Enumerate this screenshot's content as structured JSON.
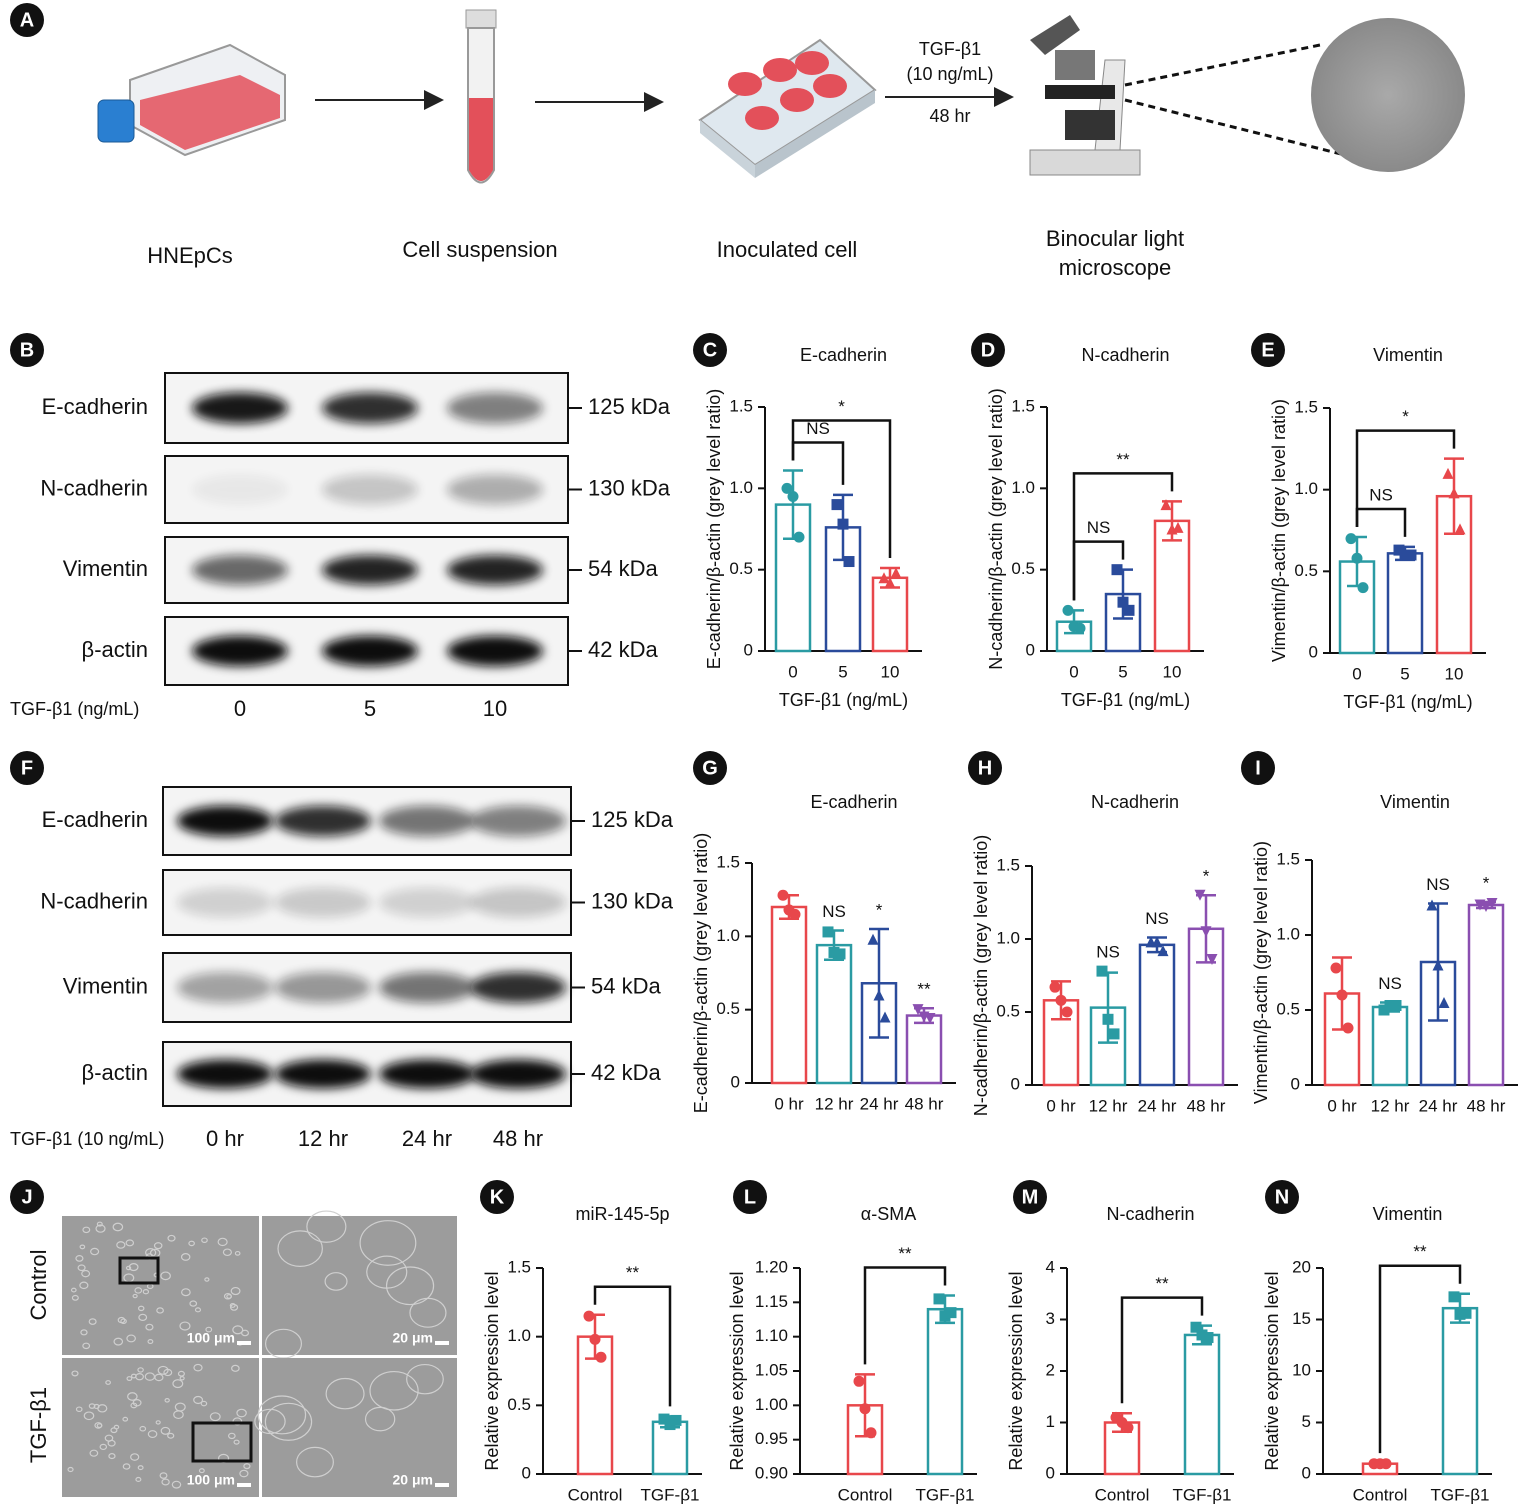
{
  "figure": {
    "a": {
      "label": "A",
      "steps": [
        [
          "HNEpCs"
        ],
        [
          "Cell suspension"
        ],
        [
          "Inoculated cell"
        ],
        [
          "Binocular light",
          "microscope"
        ]
      ],
      "treatment": [
        "TGF-β1",
        "(10 ng/mL)",
        "48 hr"
      ]
    },
    "b": {
      "label": "B",
      "proteins": [
        "E-cadherin",
        "N-cadherin",
        "Vimentin",
        "β-actin"
      ],
      "kda": [
        "125 kDa",
        "130 kDa",
        "54 kDa",
        "42 kDa"
      ],
      "treatment": "TGF-β1 (ng/mL)",
      "lanes": [
        "0",
        "5",
        "10"
      ]
    },
    "f": {
      "label": "F",
      "proteins": [
        "E-cadherin",
        "N-cadherin",
        "Vimentin",
        "β-actin"
      ],
      "kda": [
        "125 kDa",
        "130 kDa",
        "54 kDa",
        "42 kDa"
      ],
      "treatment": "TGF-β1 (10 ng/mL)",
      "lanes": [
        "0 hr",
        "12 hr",
        "24 hr",
        "48 hr"
      ]
    },
    "j": {
      "label": "J",
      "rows": [
        "Control",
        "TGF-β1"
      ],
      "scale_bars": [
        "100 μm",
        "20 μm"
      ]
    }
  },
  "chart_data": [
    {
      "type": "bar",
      "panel": "C",
      "title": "E-cadherin",
      "ylabel": "E-cadherin/β-actin (grey level ratio)",
      "xlabel": "TGF-β1 (ng/mL)",
      "categories": [
        "0",
        "5",
        "10"
      ],
      "values": [
        0.9,
        0.76,
        0.45
      ],
      "errors": [
        0.21,
        0.2,
        0.06
      ],
      "points": [
        [
          1.0,
          0.95,
          0.7
        ],
        [
          0.9,
          0.78,
          0.55
        ],
        [
          0.45,
          0.42,
          0.48
        ]
      ],
      "markers": [
        "circle",
        "square",
        "triangle"
      ],
      "colors": [
        "#2a9ba3",
        "#2a4b9b",
        "#e8474b"
      ],
      "ylim": [
        0,
        1.5
      ],
      "yticks": [
        0,
        0.5,
        {
          "value": 1,
          "label": "1.0"
        },
        1.5
      ],
      "brackets": [
        {
          "between": [
            "0",
            "5"
          ],
          "label": "NS"
        },
        {
          "between": [
            "0",
            "10"
          ],
          "label": "*"
        }
      ]
    },
    {
      "type": "bar",
      "panel": "D",
      "title": "N-cadherin",
      "ylabel": "N-cadherin/β-actin (grey level ratio)",
      "xlabel": "TGF-β1 (ng/mL)",
      "categories": [
        "0",
        "5",
        "10"
      ],
      "values": [
        0.18,
        0.35,
        0.8
      ],
      "errors": [
        0.07,
        0.15,
        0.12
      ],
      "points": [
        [
          0.25,
          0.15,
          0.14
        ],
        [
          0.5,
          0.3,
          0.25
        ],
        [
          0.9,
          0.75,
          0.76
        ]
      ],
      "markers": [
        "circle",
        "square",
        "triangle"
      ],
      "colors": [
        "#2a9ba3",
        "#2a4b9b",
        "#e8474b"
      ],
      "ylim": [
        0,
        1.5
      ],
      "yticks": [
        0,
        0.5,
        {
          "value": 1,
          "label": "1.0"
        },
        1.5
      ],
      "brackets": [
        {
          "between": [
            "0",
            "5"
          ],
          "label": "NS"
        },
        {
          "between": [
            "0",
            "10"
          ],
          "label": "**"
        }
      ]
    },
    {
      "type": "bar",
      "panel": "E",
      "title": "Vimentin",
      "ylabel": "Vimentin/β-actin (grey level ratio)",
      "xlabel": "TGF-β1 (ng/mL)",
      "categories": [
        "0",
        "5",
        "10"
      ],
      "values": [
        0.56,
        0.61,
        0.96
      ],
      "errors": [
        0.15,
        0.04,
        0.23
      ],
      "points": [
        [
          0.7,
          0.58,
          0.4
        ],
        [
          0.63,
          0.6,
          0.6
        ],
        [
          1.1,
          0.98,
          0.76
        ]
      ],
      "markers": [
        "circle",
        "square",
        "triangle"
      ],
      "colors": [
        "#2a9ba3",
        "#2a4b9b",
        "#e8474b"
      ],
      "ylim": [
        0,
        1.5
      ],
      "yticks": [
        0,
        0.5,
        {
          "value": 1,
          "label": "1.0"
        },
        1.5
      ],
      "brackets": [
        {
          "between": [
            "0",
            "5"
          ],
          "label": "NS"
        },
        {
          "between": [
            "0",
            "10"
          ],
          "label": "*"
        }
      ]
    },
    {
      "type": "bar",
      "panel": "G",
      "title": "E-cadherin",
      "ylabel": "E-cadherin/β-actin (grey level ratio)",
      "categories": [
        "0 hr",
        "12 hr",
        "24 hr",
        "48 hr"
      ],
      "values": [
        1.2,
        0.94,
        0.68,
        0.46
      ],
      "errors": [
        0.08,
        0.1,
        0.37,
        0.05
      ],
      "points": [
        [
          1.28,
          1.18,
          1.15
        ],
        [
          1.03,
          0.89,
          0.88
        ],
        [
          0.98,
          0.6,
          0.45
        ],
        [
          0.5,
          0.45,
          0.44
        ]
      ],
      "markers": [
        "circle",
        "square",
        "triangle",
        "triangle-down"
      ],
      "colors": [
        "#e8474b",
        "#2a9ba3",
        "#2a4b9b",
        "#8a4fb0"
      ],
      "ylim": [
        0,
        1.5
      ],
      "yticks": [
        0,
        0.5,
        {
          "value": 1,
          "label": "1.0"
        },
        1.5
      ],
      "significance": [
        null,
        "NS",
        "*",
        "**"
      ]
    },
    {
      "type": "bar",
      "panel": "H",
      "title": "N-cadherin",
      "ylabel": "N-cadherin/β-actin (grey level ratio)",
      "categories": [
        "0 hr",
        "12 hr",
        "24 hr",
        "48 hr"
      ],
      "values": [
        0.58,
        0.53,
        0.96,
        1.07
      ],
      "errors": [
        0.13,
        0.24,
        0.05,
        0.23
      ],
      "points": [
        [
          0.67,
          0.58,
          0.5
        ],
        [
          0.78,
          0.45,
          0.35
        ],
        [
          0.98,
          0.98,
          0.92
        ],
        [
          1.3,
          1.05,
          0.86
        ]
      ],
      "markers": [
        "circle",
        "square",
        "triangle",
        "triangle-down"
      ],
      "colors": [
        "#e8474b",
        "#2a9ba3",
        "#2a4b9b",
        "#8a4fb0"
      ],
      "ylim": [
        0,
        1.5
      ],
      "yticks": [
        0,
        0.5,
        {
          "value": 1,
          "label": "1.0"
        },
        1.5
      ],
      "significance": [
        null,
        "NS",
        "NS",
        "*"
      ]
    },
    {
      "type": "bar",
      "panel": "I",
      "title": "Vimentin",
      "ylabel": "Vimentin/β-actin (grey level ratio)",
      "categories": [
        "0 hr",
        "12 hr",
        "24 hr",
        "48 hr"
      ],
      "values": [
        0.61,
        0.52,
        0.82,
        1.2
      ],
      "errors": [
        0.24,
        0.03,
        0.39,
        0.02
      ],
      "points": [
        [
          0.78,
          0.6,
          0.38
        ],
        [
          0.5,
          0.53,
          0.53
        ],
        [
          1.2,
          0.8,
          0.55
        ],
        [
          1.2,
          1.19,
          1.21
        ]
      ],
      "markers": [
        "circle",
        "square",
        "triangle",
        "triangle-down"
      ],
      "colors": [
        "#e8474b",
        "#2a9ba3",
        "#2a4b9b",
        "#8a4fb0"
      ],
      "ylim": [
        0,
        1.5
      ],
      "yticks": [
        0,
        0.5,
        {
          "value": 1,
          "label": "1.0"
        },
        1.5
      ],
      "significance": [
        null,
        "NS",
        "NS",
        "*"
      ]
    },
    {
      "type": "bar",
      "panel": "K",
      "title": "miR-145-5p",
      "ylabel": "Relative expression level",
      "categories": [
        "Control",
        "TGF-β1"
      ],
      "values": [
        1.0,
        0.38
      ],
      "errors": [
        0.16,
        0.04
      ],
      "points": [
        [
          1.15,
          0.98,
          0.85
        ],
        [
          0.4,
          0.36,
          0.39
        ]
      ],
      "markers": [
        "circle",
        "square"
      ],
      "colors": [
        "#e8474b",
        "#2a9ba3"
      ],
      "ylim": [
        0,
        1.5
      ],
      "yticks": [
        0,
        0.5,
        {
          "value": 1,
          "label": "1.0"
        },
        1.5
      ],
      "brackets": [
        {
          "between": [
            "Control",
            "TGF-β1"
          ],
          "label": "**"
        }
      ]
    },
    {
      "type": "bar",
      "panel": "L",
      "title": "α-SMA",
      "ylabel": "Relative expression level",
      "categories": [
        "Control",
        "TGF-β1"
      ],
      "values": [
        1.0,
        1.14
      ],
      "errors": [
        0.045,
        0.02
      ],
      "points": [
        [
          1.035,
          0.995,
          0.96
        ],
        [
          1.155,
          1.13,
          1.135
        ]
      ],
      "markers": [
        "circle",
        "square"
      ],
      "colors": [
        "#e8474b",
        "#2a9ba3"
      ],
      "ylim": [
        0.9,
        1.2
      ],
      "yticks": [
        {
          "value": 0.9,
          "label": "0.90"
        },
        {
          "value": 0.95,
          "label": "0.95"
        },
        {
          "value": 1,
          "label": "1.00"
        },
        {
          "value": 1.05,
          "label": "1.05"
        },
        {
          "value": 1.1,
          "label": "1.10"
        },
        {
          "value": 1.15,
          "label": "1.15"
        },
        {
          "value": 1.2,
          "label": "1.20"
        }
      ],
      "brackets": [
        {
          "between": [
            "Control",
            "TGF-β1"
          ],
          "label": "**"
        }
      ]
    },
    {
      "type": "bar",
      "panel": "M",
      "title": "N-cadherin",
      "ylabel": "Relative expression level",
      "categories": [
        "Control",
        "TGF-β1"
      ],
      "values": [
        1.0,
        2.7
      ],
      "errors": [
        0.18,
        0.18
      ],
      "points": [
        [
          1.1,
          1.0,
          0.9
        ],
        [
          2.85,
          2.7,
          2.65
        ]
      ],
      "markers": [
        "circle",
        "square"
      ],
      "colors": [
        "#e8474b",
        "#2a9ba3"
      ],
      "ylim": [
        0,
        4
      ],
      "yticks": [
        0,
        1,
        2,
        3,
        4
      ],
      "brackets": [
        {
          "between": [
            "Control",
            "TGF-β1"
          ],
          "label": "**"
        }
      ]
    },
    {
      "type": "bar",
      "panel": "N",
      "title": "Vimentin",
      "ylabel": "Relative expression level",
      "categories": [
        "Control",
        "TGF-β1"
      ],
      "values": [
        1.0,
        16.1
      ],
      "errors": [
        0.05,
        1.4
      ],
      "points": [
        [
          1.0,
          1.0,
          1.0
        ],
        [
          17.2,
          15.5,
          15.6
        ]
      ],
      "markers": [
        "circle",
        "square"
      ],
      "colors": [
        "#e8474b",
        "#2a9ba3"
      ],
      "ylim": [
        0,
        20
      ],
      "yticks": [
        0,
        5,
        10,
        15,
        20
      ],
      "brackets": [
        {
          "between": [
            "Control",
            "TGF-β1"
          ],
          "label": "**"
        }
      ]
    }
  ]
}
